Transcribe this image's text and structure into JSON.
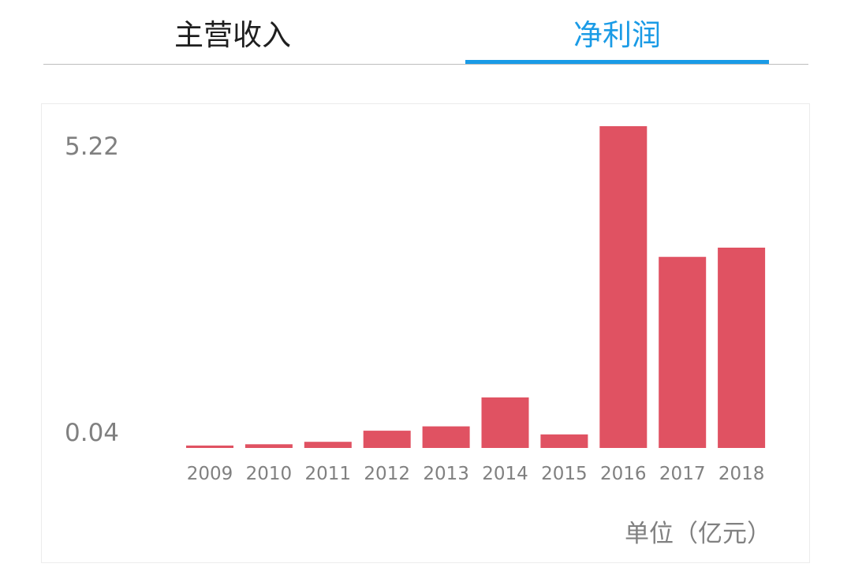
{
  "tabs": [
    {
      "label": "主营收入",
      "active": false
    },
    {
      "label": "净利润",
      "active": true
    }
  ],
  "colors": {
    "active_tab": "#1a9be6",
    "bar": "#e05262",
    "label": "#808080"
  },
  "chart_data": {
    "type": "bar",
    "categories": [
      "2009",
      "2010",
      "2011",
      "2012",
      "2013",
      "2014",
      "2015",
      "2016",
      "2017",
      "2018"
    ],
    "values": [
      0.04,
      0.06,
      0.1,
      0.28,
      0.35,
      0.82,
      0.22,
      5.22,
      3.1,
      3.25
    ],
    "y_tick_labels": [
      "5.22",
      "0.04"
    ],
    "unit_label": "单位（亿元）",
    "ylim": [
      0,
      5.22
    ],
    "grid": false,
    "legend": "none"
  }
}
